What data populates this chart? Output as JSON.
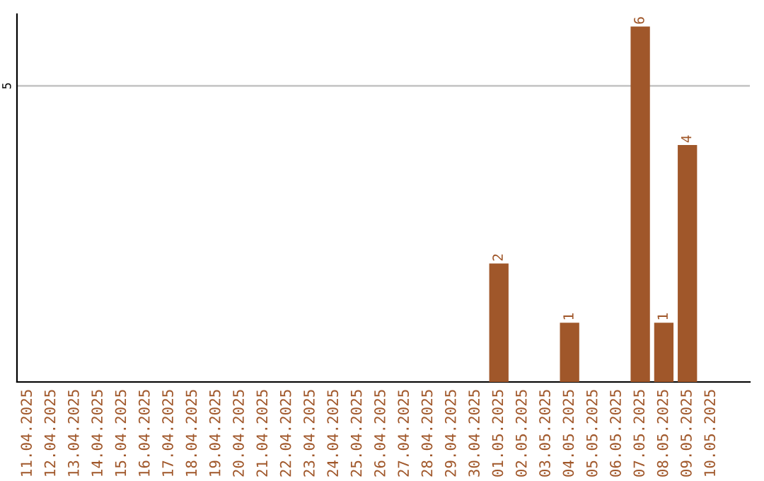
{
  "chart_data": {
    "type": "bar",
    "categories": [
      "11.04.2025",
      "12.04.2025",
      "13.04.2025",
      "14.04.2025",
      "15.04.2025",
      "16.04.2025",
      "17.04.2025",
      "18.04.2025",
      "19.04.2025",
      "20.04.2025",
      "21.04.2025",
      "22.04.2025",
      "23.04.2025",
      "24.04.2025",
      "25.04.2025",
      "26.04.2025",
      "27.04.2025",
      "28.04.2025",
      "29.04.2025",
      "30.04.2025",
      "01.05.2025",
      "02.05.2025",
      "03.05.2025",
      "04.05.2025",
      "05.05.2025",
      "06.05.2025",
      "07.05.2025",
      "08.05.2025",
      "09.05.2025",
      "10.05.2025"
    ],
    "values": [
      null,
      null,
      null,
      null,
      null,
      null,
      null,
      null,
      null,
      null,
      null,
      null,
      null,
      null,
      null,
      null,
      null,
      null,
      null,
      null,
      2,
      null,
      null,
      1,
      null,
      null,
      6,
      1,
      4,
      null
    ],
    "data_labels": true,
    "color": "#a0572a",
    "ref_lines": [
      {
        "axis": "y",
        "value": 5,
        "label": "5",
        "color": "#c8c8c8"
      }
    ]
  }
}
